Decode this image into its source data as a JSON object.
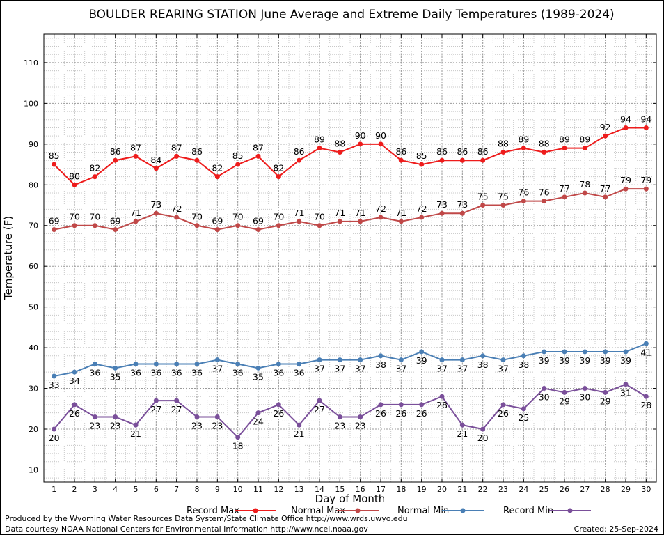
{
  "chart_data": {
    "type": "line",
    "title": "BOULDER REARING STATION June Average and Extreme Daily Temperatures (1989-2024)",
    "xlabel": "Day of Month",
    "ylabel": "Temperature (F)",
    "x": [
      1,
      2,
      3,
      4,
      5,
      6,
      7,
      8,
      9,
      10,
      11,
      12,
      13,
      14,
      15,
      16,
      17,
      18,
      19,
      20,
      21,
      22,
      23,
      24,
      25,
      26,
      27,
      28,
      29,
      30
    ],
    "xlim": [
      0.5,
      30.5
    ],
    "ylim": [
      7,
      117
    ],
    "y_ticks": [
      10,
      20,
      30,
      40,
      50,
      60,
      70,
      80,
      90,
      100,
      110
    ],
    "grid": true,
    "legend_position": "bottom",
    "series": [
      {
        "name": "Record Max",
        "color": "#ee1c1c",
        "label_position": "above",
        "values": [
          85,
          80,
          82,
          86,
          87,
          84,
          87,
          86,
          82,
          85,
          87,
          82,
          86,
          89,
          88,
          90,
          90,
          86,
          85,
          86,
          86,
          86,
          88,
          89,
          88,
          89,
          89,
          92,
          94,
          94
        ]
      },
      {
        "name": "Normal Max",
        "color": "#c04848",
        "label_position": "above",
        "values": [
          69,
          70,
          70,
          69,
          71,
          73,
          72,
          70,
          69,
          70,
          69,
          70,
          71,
          70,
          71,
          71,
          72,
          71,
          72,
          73,
          73,
          75,
          75,
          76,
          76,
          77,
          78,
          77,
          79,
          79
        ]
      },
      {
        "name": "Normal Min",
        "color": "#4a7fb5",
        "label_position": "below",
        "values": [
          33,
          34,
          36,
          35,
          36,
          36,
          36,
          36,
          37,
          36,
          35,
          36,
          36,
          37,
          37,
          37,
          38,
          37,
          39,
          37,
          37,
          38,
          37,
          38,
          39,
          39,
          39,
          39,
          39,
          41
        ]
      },
      {
        "name": "Record Min",
        "color": "#7a4f9a",
        "label_position": "below",
        "values": [
          20,
          26,
          23,
          23,
          21,
          27,
          27,
          23,
          23,
          18,
          24,
          26,
          21,
          27,
          23,
          23,
          26,
          26,
          26,
          28,
          21,
          20,
          26,
          25,
          30,
          29,
          30,
          29,
          31,
          28
        ]
      }
    ]
  },
  "footer": {
    "produced_by": "Produced by the Wyoming Water Resources Data System/State Climate Office http://www.wrds.uwyo.edu",
    "data_courtesy": "Data courtesy NOAA National Centers for Environmental Information http://www.ncei.noaa.gov",
    "created": "Created:  25-Sep-2024"
  }
}
